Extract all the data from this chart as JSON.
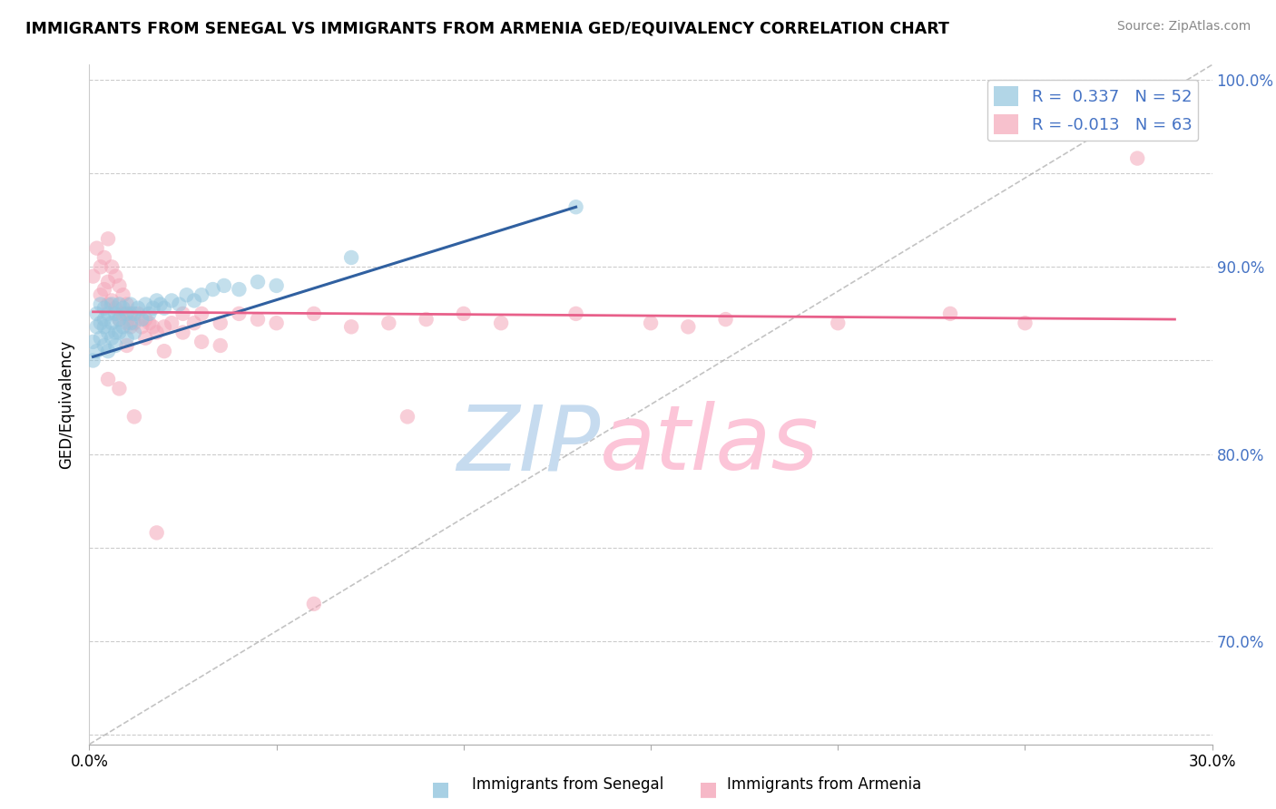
{
  "title": "IMMIGRANTS FROM SENEGAL VS IMMIGRANTS FROM ARMENIA GED/EQUIVALENCY CORRELATION CHART",
  "source": "Source: ZipAtlas.com",
  "ylabel": "GED/Equivalency",
  "x_min": 0.0,
  "x_max": 0.3,
  "y_min": 0.645,
  "y_max": 1.008,
  "x_ticks": [
    0.0,
    0.05,
    0.1,
    0.15,
    0.2,
    0.25,
    0.3
  ],
  "y_ticks": [
    0.7,
    0.8,
    0.9,
    1.0
  ],
  "y_ticks_all": [
    0.65,
    0.7,
    0.75,
    0.8,
    0.85,
    0.9,
    0.95,
    1.0
  ],
  "blue_R": 0.337,
  "blue_N": 52,
  "pink_R": -0.013,
  "pink_N": 63,
  "legend_label_blue": "Immigrants from Senegal",
  "legend_label_pink": "Immigrants from Armenia",
  "dot_color_blue": "#92c5de",
  "dot_color_pink": "#f4a7b9",
  "line_color_blue": "#3060a0",
  "line_color_pink": "#e8608a",
  "watermark_color_zip": "#c6dbef",
  "watermark_color_atlas": "#fcc5d8",
  "blue_scatter_x": [
    0.001,
    0.001,
    0.002,
    0.002,
    0.002,
    0.003,
    0.003,
    0.003,
    0.004,
    0.004,
    0.004,
    0.004,
    0.005,
    0.005,
    0.005,
    0.006,
    0.006,
    0.006,
    0.007,
    0.007,
    0.007,
    0.008,
    0.008,
    0.008,
    0.009,
    0.009,
    0.01,
    0.01,
    0.011,
    0.011,
    0.012,
    0.012,
    0.013,
    0.014,
    0.015,
    0.016,
    0.017,
    0.018,
    0.019,
    0.02,
    0.022,
    0.024,
    0.026,
    0.028,
    0.03,
    0.033,
    0.036,
    0.04,
    0.045,
    0.05,
    0.07,
    0.13
  ],
  "blue_scatter_y": [
    0.86,
    0.85,
    0.868,
    0.875,
    0.855,
    0.87,
    0.88,
    0.862,
    0.878,
    0.868,
    0.858,
    0.872,
    0.875,
    0.865,
    0.855,
    0.88,
    0.87,
    0.862,
    0.875,
    0.865,
    0.858,
    0.872,
    0.88,
    0.865,
    0.878,
    0.868,
    0.875,
    0.862,
    0.87,
    0.88,
    0.875,
    0.865,
    0.878,
    0.872,
    0.88,
    0.875,
    0.878,
    0.882,
    0.88,
    0.878,
    0.882,
    0.88,
    0.885,
    0.882,
    0.885,
    0.888,
    0.89,
    0.888,
    0.892,
    0.89,
    0.905,
    0.932
  ],
  "pink_scatter_x": [
    0.001,
    0.002,
    0.003,
    0.003,
    0.004,
    0.004,
    0.005,
    0.005,
    0.005,
    0.006,
    0.006,
    0.007,
    0.007,
    0.008,
    0.008,
    0.009,
    0.009,
    0.01,
    0.01,
    0.011,
    0.011,
    0.012,
    0.013,
    0.014,
    0.015,
    0.016,
    0.017,
    0.018,
    0.02,
    0.022,
    0.025,
    0.028,
    0.03,
    0.035,
    0.04,
    0.045,
    0.05,
    0.06,
    0.07,
    0.08,
    0.09,
    0.1,
    0.11,
    0.13,
    0.15,
    0.16,
    0.17,
    0.2,
    0.23,
    0.25,
    0.01,
    0.015,
    0.02,
    0.025,
    0.03,
    0.035,
    0.005,
    0.008,
    0.012,
    0.018,
    0.06,
    0.085,
    0.28
  ],
  "pink_scatter_y": [
    0.895,
    0.91,
    0.9,
    0.885,
    0.905,
    0.888,
    0.915,
    0.892,
    0.88,
    0.9,
    0.882,
    0.895,
    0.878,
    0.89,
    0.872,
    0.885,
    0.875,
    0.88,
    0.87,
    0.875,
    0.868,
    0.87,
    0.875,
    0.868,
    0.872,
    0.87,
    0.868,
    0.865,
    0.868,
    0.87,
    0.875,
    0.87,
    0.875,
    0.87,
    0.875,
    0.872,
    0.87,
    0.875,
    0.868,
    0.87,
    0.872,
    0.875,
    0.87,
    0.875,
    0.87,
    0.868,
    0.872,
    0.87,
    0.875,
    0.87,
    0.858,
    0.862,
    0.855,
    0.865,
    0.86,
    0.858,
    0.84,
    0.835,
    0.82,
    0.758,
    0.72,
    0.82,
    0.958
  ],
  "blue_line_x": [
    0.001,
    0.13
  ],
  "blue_line_y": [
    0.852,
    0.932
  ],
  "pink_line_x": [
    0.001,
    0.29
  ],
  "pink_line_y": [
    0.876,
    0.872
  ],
  "diag_line_x": [
    0.0,
    0.3
  ],
  "diag_line_y": [
    0.645,
    1.008
  ]
}
